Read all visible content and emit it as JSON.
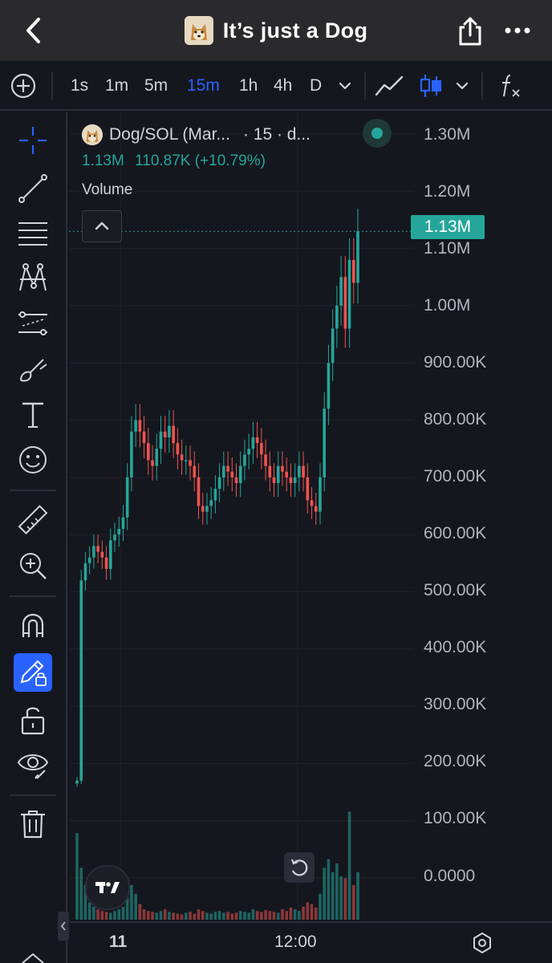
{
  "header": {
    "title": "It’s just a Dog",
    "back_icon": "chevron-left-icon",
    "share_icon": "share-icon",
    "more_icon": "more-horizontal-icon"
  },
  "toolbar": {
    "intervals": [
      "1s",
      "1m",
      "5m",
      "15m",
      "1h",
      "4h",
      "D"
    ],
    "active_interval": "15m",
    "accent_color": "#2962ff"
  },
  "legend": {
    "symbol": "Dog/SOL (Mar...",
    "interval": "· 15 · d...",
    "price": "1.13M",
    "change": "110.87K (+10.79%)",
    "volume_label": "Volume"
  },
  "price_tag": "1.13M",
  "y_axis": [
    "1.30M",
    "1.20M",
    "1.10M",
    "1.00M",
    "900.00K",
    "800.00K",
    "700.00K",
    "600.00K",
    "500.00K",
    "400.00K",
    "300.00K",
    "200.00K",
    "100.00K",
    "0.0000"
  ],
  "x_axis": [
    "11",
    "12:00"
  ],
  "colors": {
    "up": "#26a69a",
    "down": "#ef5350",
    "header_bg": "#2a2a2c",
    "bg": "#15171e"
  },
  "chart_data": {
    "type": "candlestick",
    "title": "Dog/SOL (Mar...",
    "xlabel": "",
    "ylabel": "",
    "ylim": [
      0,
      1300000
    ],
    "x_ticks": [
      "11",
      "12:00"
    ],
    "close": [
      170000,
      520000,
      550000,
      560000,
      580000,
      570000,
      560000,
      540000,
      590000,
      600000,
      610000,
      630000,
      700000,
      780000,
      800000,
      780000,
      760000,
      730000,
      720000,
      750000,
      780000,
      770000,
      790000,
      760000,
      740000,
      730000,
      730000,
      720000,
      700000,
      650000,
      640000,
      650000,
      660000,
      680000,
      700000,
      720000,
      710000,
      700000,
      690000,
      720000,
      740000,
      750000,
      770000,
      760000,
      740000,
      720000,
      700000,
      690000,
      720000,
      710000,
      700000,
      690000,
      700000,
      720000,
      700000,
      660000,
      650000,
      640000,
      700000,
      820000,
      900000,
      960000,
      1000000,
      1050000,
      960000,
      1080000,
      1040000,
      1130000
    ],
    "volume": [
      100000,
      60000,
      40000,
      20000,
      15000,
      12000,
      10000,
      9000,
      8000,
      10000,
      12000,
      15000,
      35000,
      40000,
      30000,
      18000,
      12000,
      10000,
      9000,
      8000,
      10000,
      12000,
      9000,
      8000,
      7000,
      6000,
      8000,
      9000,
      7000,
      12000,
      10000,
      8000,
      7000,
      9000,
      10000,
      8000,
      9000,
      7000,
      8000,
      10000,
      9000,
      8000,
      12000,
      10000,
      9000,
      11000,
      10000,
      9000,
      8000,
      12000,
      10000,
      14000,
      12000,
      10000,
      15000,
      20000,
      18000,
      14000,
      30000,
      60000,
      70000,
      55000,
      65000,
      50000,
      48000,
      125000,
      40000,
      55000
    ]
  }
}
